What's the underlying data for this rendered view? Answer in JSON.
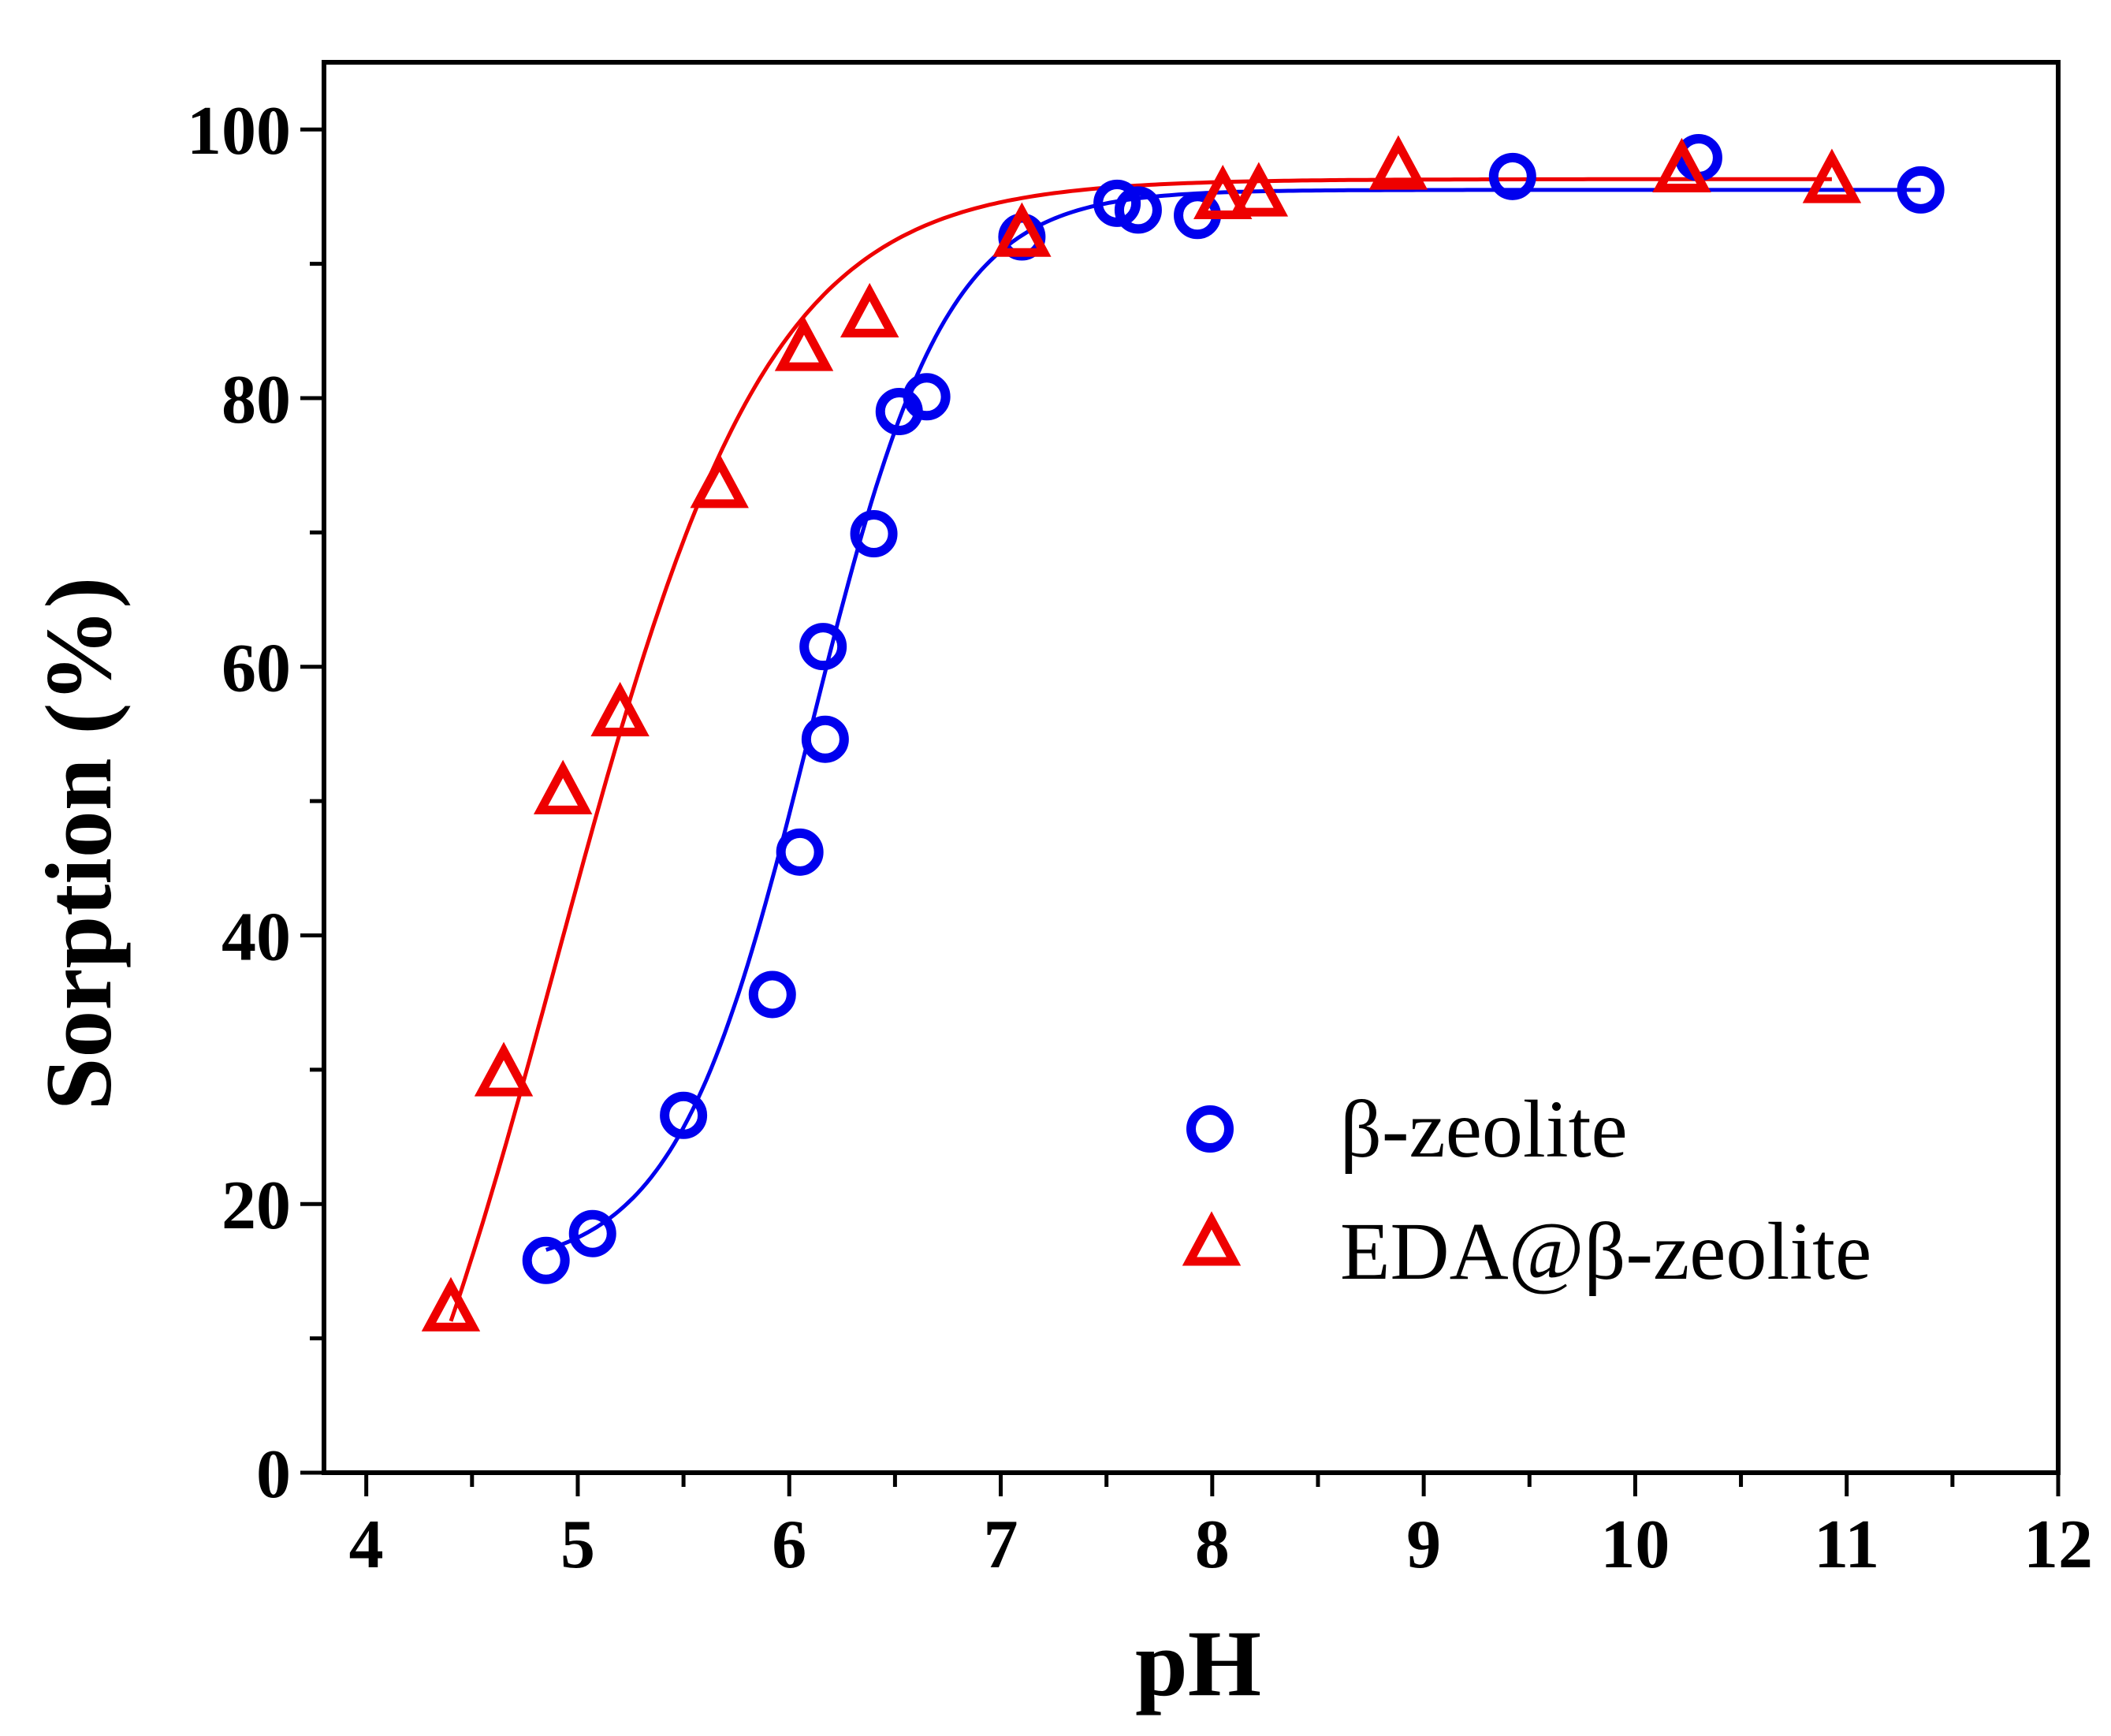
{
  "chart_data": {
    "type": "scatter",
    "title": "",
    "xlabel": "pH",
    "ylabel": "Sorption (%)",
    "xlim": [
      3.8,
      12
    ],
    "ylim": [
      0,
      105
    ],
    "x_ticks": [
      4,
      5,
      6,
      7,
      8,
      9,
      10,
      11,
      12
    ],
    "x_tick_labels": [
      "4",
      "5",
      "6",
      "7",
      "8",
      "9",
      "10",
      "11",
      "12"
    ],
    "y_ticks": [
      0,
      20,
      40,
      60,
      80,
      100
    ],
    "y_tick_labels": [
      "0",
      "20",
      "40",
      "60",
      "80",
      "100"
    ],
    "grid": false,
    "legend_position": "bottom-right",
    "series": [
      {
        "name": "β-zeolite",
        "marker": "circle",
        "color": "#0000ee",
        "points": [
          {
            "x": 4.85,
            "y": 15.8
          },
          {
            "x": 5.07,
            "y": 17.8
          },
          {
            "x": 5.5,
            "y": 26.6
          },
          {
            "x": 5.92,
            "y": 35.6
          },
          {
            "x": 6.05,
            "y": 46.2
          },
          {
            "x": 6.17,
            "y": 54.6
          },
          {
            "x": 6.16,
            "y": 61.5
          },
          {
            "x": 6.4,
            "y": 69.9
          },
          {
            "x": 6.52,
            "y": 79.0
          },
          {
            "x": 6.65,
            "y": 80.1
          },
          {
            "x": 7.1,
            "y": 92.0
          },
          {
            "x": 7.55,
            "y": 94.5
          },
          {
            "x": 7.65,
            "y": 94.0
          },
          {
            "x": 7.93,
            "y": 93.6
          },
          {
            "x": 9.42,
            "y": 96.5
          },
          {
            "x": 10.3,
            "y": 97.9
          },
          {
            "x": 11.35,
            "y": 95.5
          }
        ],
        "fit": {
          "ymin": 15.0,
          "ymax": 95.5,
          "x50": 6.1,
          "slope": 0.32
        }
      },
      {
        "name": "EDA@β-zeolite",
        "marker": "triangle",
        "color": "#ee0000",
        "points": [
          {
            "x": 4.4,
            "y": 12.0
          },
          {
            "x": 4.65,
            "y": 29.5
          },
          {
            "x": 4.93,
            "y": 50.5
          },
          {
            "x": 5.2,
            "y": 56.3
          },
          {
            "x": 5.67,
            "y": 73.3
          },
          {
            "x": 6.07,
            "y": 83.5
          },
          {
            "x": 6.38,
            "y": 86.0
          },
          {
            "x": 7.1,
            "y": 92.0
          },
          {
            "x": 8.05,
            "y": 94.8
          },
          {
            "x": 8.22,
            "y": 95.0
          },
          {
            "x": 8.88,
            "y": 97.0
          },
          {
            "x": 10.22,
            "y": 96.8
          },
          {
            "x": 10.93,
            "y": 96.0
          }
        ],
        "fit": {
          "ymin": -20.0,
          "ymax": 96.3,
          "x50": 4.9,
          "slope": 0.5
        }
      }
    ]
  }
}
